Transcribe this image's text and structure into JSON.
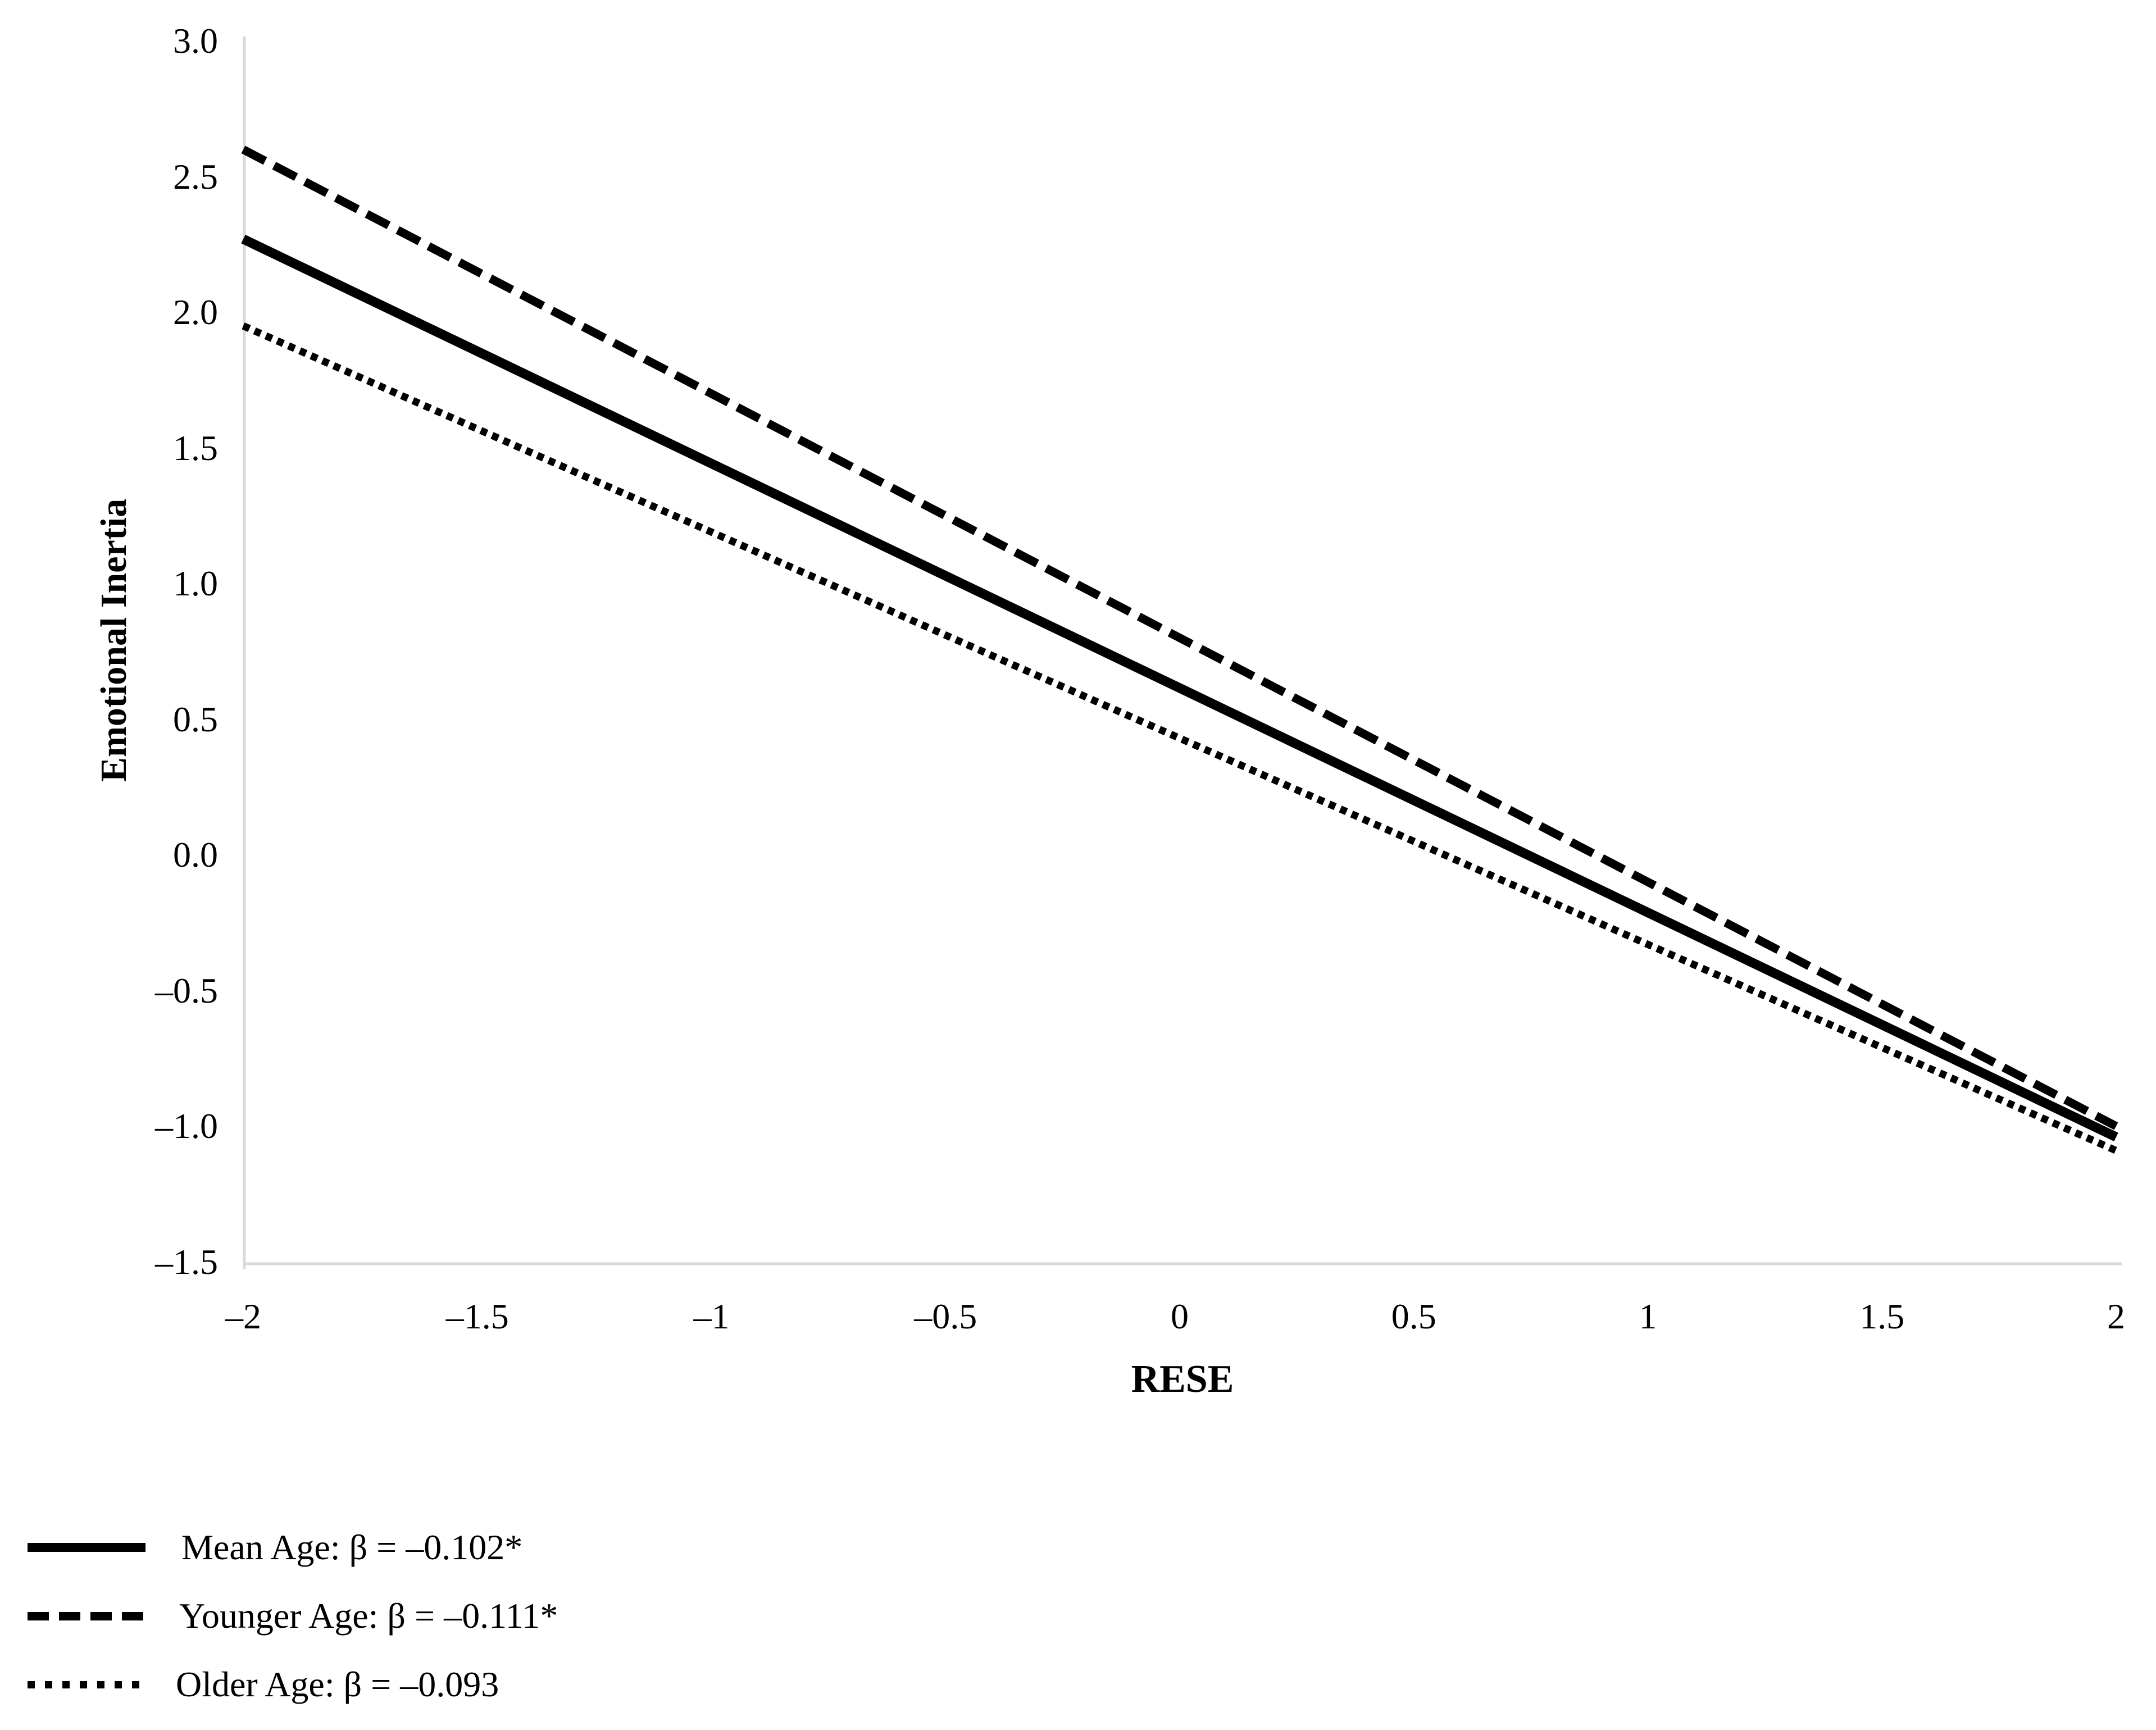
{
  "figure": {
    "background_color": "#ffffff",
    "axis_line_color": "#d9d9d9",
    "series_line_color": "#000000",
    "text_color": "#000000"
  },
  "chart_data": {
    "type": "line",
    "title": "",
    "xlabel": "RESE",
    "ylabel": "Emotional Inertia",
    "xlim": [
      -2,
      2
    ],
    "ylim": [
      -1.5,
      3.0
    ],
    "grid": false,
    "legend_position": "bottom-left",
    "x_ticks": [
      "–2",
      "–1.5",
      "–1",
      "–0.5",
      "0",
      "0.5",
      "1",
      "1.5",
      "2"
    ],
    "y_ticks": [
      "3.0",
      "2.5",
      "2.0",
      "1.5",
      "1.0",
      "0.5",
      "0.0",
      "–0.5",
      "–1.0",
      "–1.5"
    ],
    "series": [
      {
        "name": "Mean Age",
        "label": "Mean Age: β = –0.102*",
        "beta": "–0.102*",
        "style": "solid",
        "x": [
          -2,
          2
        ],
        "values": [
          2.27,
          -1.04
        ]
      },
      {
        "name": "Younger Age",
        "label": "Younger Age: β = –0.111*",
        "beta": "–0.111*",
        "style": "dashed",
        "x": [
          -2,
          2
        ],
        "values": [
          2.6,
          -1.0
        ]
      },
      {
        "name": "Older Age",
        "label": "Older Age: β = –0.093",
        "beta": "–0.093",
        "style": "dotted",
        "x": [
          -2,
          2
        ],
        "values": [
          1.95,
          -1.09
        ]
      }
    ]
  }
}
